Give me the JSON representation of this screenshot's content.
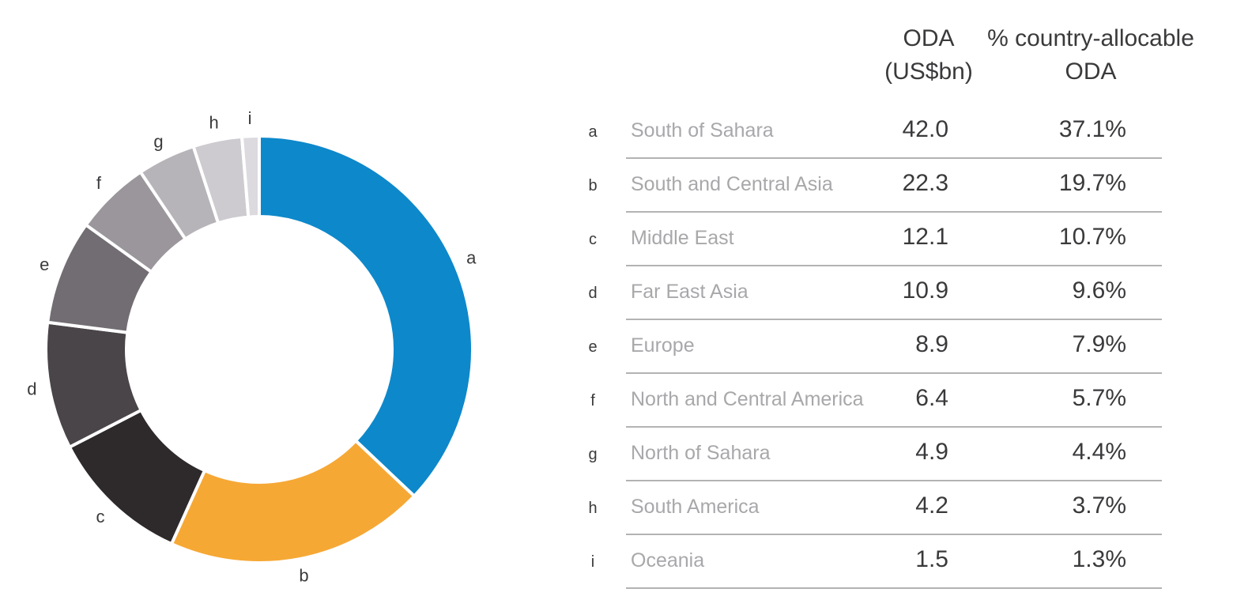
{
  "chart_data": {
    "type": "pie",
    "columns": [
      "ODA\n(US$bn)",
      "% country-allocable\nODA"
    ],
    "colors": [
      "#0d88cb",
      "#f6a835",
      "#2e2a2b",
      "#4a4548",
      "#726d72",
      "#9a969b",
      "#b7b4b9",
      "#cdcad0",
      "#dcdadf"
    ],
    "rows": [
      {
        "key": "a",
        "region": "South of Sahara",
        "oda": "42.0",
        "pct": "37.1%",
        "value": 37.1
      },
      {
        "key": "b",
        "region": "South and Central Asia",
        "oda": "22.3",
        "pct": "19.7%",
        "value": 19.7
      },
      {
        "key": "c",
        "region": "Middle East",
        "oda": "12.1",
        "pct": "10.7%",
        "value": 10.7
      },
      {
        "key": "d",
        "region": "Far East Asia",
        "oda": "10.9",
        "pct": "9.6%",
        "value": 9.6
      },
      {
        "key": "e",
        "region": "Europe",
        "oda": "8.9",
        "pct": "7.9%",
        "value": 7.9
      },
      {
        "key": "f",
        "region": "North and Central America",
        "oda": "6.4",
        "pct": "5.7%",
        "value": 5.7
      },
      {
        "key": "g",
        "region": "North of Sahara",
        "oda": "4.9",
        "pct": "4.4%",
        "value": 4.4
      },
      {
        "key": "h",
        "region": "South America",
        "oda": "4.2",
        "pct": "3.7%",
        "value": 3.7
      },
      {
        "key": "i",
        "region": "Oceania",
        "oda": "1.5",
        "pct": "1.3%",
        "value": 1.3
      }
    ]
  }
}
